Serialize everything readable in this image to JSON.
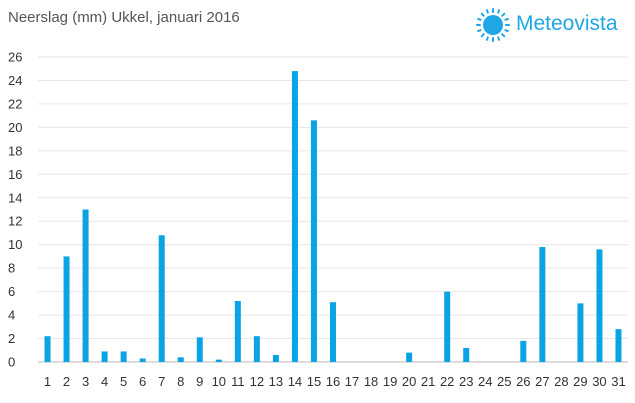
{
  "title": "Neerslag (mm) Ukkel, januari 2016",
  "brand": {
    "name": "Meteovista",
    "icon": "sun-icon",
    "color": "#1ea7e4"
  },
  "chart_data": {
    "type": "bar",
    "title": "Neerslag (mm) Ukkel, januari 2016",
    "xlabel": "",
    "ylabel": "",
    "ylim": [
      0,
      26
    ],
    "yticks": [
      0,
      2,
      4,
      6,
      8,
      10,
      12,
      14,
      16,
      18,
      20,
      22,
      24,
      26
    ],
    "grid": true,
    "bar_color": "#0aa3e6",
    "categories": [
      "1",
      "2",
      "3",
      "4",
      "5",
      "6",
      "7",
      "8",
      "9",
      "10",
      "11",
      "12",
      "13",
      "14",
      "15",
      "16",
      "17",
      "18",
      "19",
      "20",
      "21",
      "22",
      "23",
      "24",
      "25",
      "26",
      "27",
      "28",
      "29",
      "30",
      "31"
    ],
    "values": [
      2.2,
      9.0,
      13.0,
      0.9,
      0.9,
      0.3,
      10.8,
      0.4,
      2.1,
      0.2,
      5.2,
      2.2,
      0.6,
      24.8,
      20.6,
      5.1,
      0,
      0,
      0,
      0.8,
      0,
      6.0,
      1.2,
      0,
      0,
      1.8,
      9.8,
      0,
      5.0,
      9.6,
      2.8
    ]
  }
}
